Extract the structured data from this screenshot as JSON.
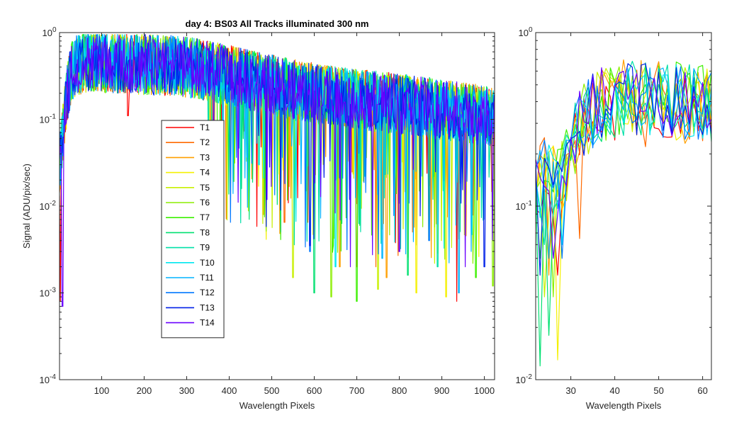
{
  "chart_data": [
    {
      "type": "line",
      "title": "day 4: BS03   All Tracks illuminated   300 nm",
      "xlabel": "Wavelength Pixels",
      "ylabel": "Signal (ADU/pix/sec)",
      "xlim": [
        1,
        1024
      ],
      "ylim": [
        0.0001,
        1
      ],
      "yscale": "log",
      "xticks": [
        100,
        200,
        300,
        400,
        500,
        600,
        700,
        800,
        900,
        1000
      ],
      "yticks": [
        {
          "value": 0.0001,
          "base": "10",
          "exp": "-4"
        },
        {
          "value": 0.001,
          "base": "10",
          "exp": "-3"
        },
        {
          "value": 0.01,
          "base": "10",
          "exp": "-2"
        },
        {
          "value": 0.1,
          "base": "10",
          "exp": "-1"
        },
        {
          "value": 1,
          "base": "10",
          "exp": "0"
        }
      ],
      "grid": false,
      "legend": "inside-center-left",
      "envelope": {
        "x": [
          1,
          10,
          20,
          30,
          40,
          60,
          100,
          150,
          200,
          250,
          300,
          350,
          400,
          450,
          500,
          550,
          600,
          650,
          700,
          750,
          800,
          850,
          900,
          950,
          1000,
          1024
        ],
        "y": [
          0.02,
          0.08,
          0.2,
          0.35,
          0.42,
          0.45,
          0.45,
          0.44,
          0.43,
          0.42,
          0.4,
          0.36,
          0.32,
          0.28,
          0.25,
          0.22,
          0.2,
          0.18,
          0.17,
          0.16,
          0.15,
          0.14,
          0.13,
          0.12,
          0.11,
          0.1
        ]
      },
      "series": [
        {
          "name": "T1",
          "color": "#ff0000",
          "dips": [
            [
              162,
              0.11
            ],
            [
              3,
              0.0008
            ],
            [
              935,
              0.0008
            ]
          ]
        },
        {
          "name": "T2",
          "color": "#ff6a00",
          "dips": [
            [
              530,
              0.0065
            ],
            [
              585,
              0.0065
            ],
            [
              700,
              0.002
            ],
            [
              745,
              0.002
            ],
            [
              913,
              0.0075
            ]
          ]
        },
        {
          "name": "T3",
          "color": "#ff9f00",
          "dips": [
            [
              480,
              0.008
            ],
            [
              660,
              0.002
            ],
            [
              770,
              0.0015
            ]
          ]
        },
        {
          "name": "T4",
          "color": "#f4f000",
          "dips": [
            [
              910,
              0.0009
            ],
            [
              840,
              0.001
            ]
          ]
        },
        {
          "name": "T5",
          "color": "#c8f000",
          "dips": [
            [
              550,
              0.0015
            ],
            [
              750,
              0.0011
            ]
          ]
        },
        {
          "name": "T6",
          "color": "#8cee00",
          "dips": [
            [
              640,
              0.0009
            ],
            [
              1020,
              0.0012
            ]
          ]
        },
        {
          "name": "T7",
          "color": "#3cf000",
          "dips": [
            [
              700,
              0.0008
            ],
            [
              980,
              0.0015
            ]
          ]
        },
        {
          "name": "T8",
          "color": "#00e070",
          "dips": [
            [
              820,
              0.0016
            ],
            [
              600,
              0.001
            ]
          ]
        },
        {
          "name": "T9",
          "color": "#00e0a8",
          "dips": [
            [
              360,
              0.06
            ],
            [
              890,
              0.002
            ]
          ]
        },
        {
          "name": "T10",
          "color": "#00e8f0",
          "dips": [
            [
              470,
              0.03
            ],
            [
              650,
              0.002
            ]
          ]
        },
        {
          "name": "T11",
          "color": "#00b4ff",
          "dips": [
            [
              760,
              0.0025
            ],
            [
              940,
              0.001
            ]
          ]
        },
        {
          "name": "T12",
          "color": "#0078ff",
          "dips": [
            [
              590,
              0.003
            ],
            [
              870,
              0.004
            ]
          ]
        },
        {
          "name": "T13",
          "color": "#0020e8",
          "dips": [
            [
              590,
              0.0035
            ],
            [
              1000,
              0.002
            ]
          ]
        },
        {
          "name": "T14",
          "color": "#6a00ff",
          "dips": [
            [
              8,
              0.0007
            ],
            [
              685,
              0.002
            ],
            [
              800,
              0.003
            ],
            [
              955,
              0.002
            ]
          ]
        }
      ]
    },
    {
      "type": "line",
      "title": "",
      "xlabel": "Wavelength Pixels",
      "ylabel": "",
      "xlim": [
        22,
        62
      ],
      "ylim": [
        0.01,
        1
      ],
      "yscale": "log",
      "xticks": [
        30,
        40,
        50,
        60
      ],
      "yticks": [
        {
          "value": 0.01,
          "base": "10",
          "exp": "-2"
        },
        {
          "value": 0.1,
          "base": "10",
          "exp": "-1"
        },
        {
          "value": 1,
          "base": "10",
          "exp": "0"
        }
      ],
      "grid": false,
      "envelope": {
        "x": [
          22,
          24,
          26,
          28,
          30,
          32,
          34,
          36,
          38,
          40,
          42,
          44,
          46,
          48,
          50,
          52,
          54,
          56,
          58,
          60,
          62
        ],
        "y": [
          0.12,
          0.16,
          0.14,
          0.15,
          0.2,
          0.28,
          0.33,
          0.37,
          0.39,
          0.41,
          0.42,
          0.42,
          0.42,
          0.42,
          0.41,
          0.41,
          0.41,
          0.4,
          0.4,
          0.39,
          0.39
        ]
      },
      "series": [
        {
          "name": "T1",
          "color": "#ff0000",
          "dips": [
            [
              27,
              0.04
            ],
            [
              40,
              0.24
            ]
          ]
        },
        {
          "name": "T2",
          "color": "#ff6a00",
          "dips": [
            [
              25,
              0.05
            ],
            [
              32,
              0.065
            ],
            [
              47,
              0.22
            ]
          ]
        },
        {
          "name": "T3",
          "color": "#ff9f00",
          "dips": [
            [
              25,
              0.04
            ],
            [
              56,
              0.23
            ]
          ]
        },
        {
          "name": "T4",
          "color": "#f4f000",
          "dips": [
            [
              27,
              0.013
            ],
            [
              54,
              0.24
            ]
          ]
        },
        {
          "name": "T5",
          "color": "#c8f000",
          "dips": [
            [
              24,
              0.03
            ]
          ]
        },
        {
          "name": "T6",
          "color": "#8cee00",
          "dips": [
            [
              26,
              0.03
            ],
            [
              58,
              0.26
            ]
          ]
        },
        {
          "name": "T7",
          "color": "#3cf000",
          "dips": [
            [
              23,
              0.05
            ]
          ]
        },
        {
          "name": "T8",
          "color": "#00e070",
          "dips": [
            [
              23,
              0.012
            ],
            [
              25,
              0.018
            ]
          ]
        },
        {
          "name": "T9",
          "color": "#00e0a8",
          "dips": [
            [
              24,
              0.06
            ]
          ]
        },
        {
          "name": "T10",
          "color": "#00e8f0",
          "dips": [
            [
              28,
              0.06
            ]
          ]
        },
        {
          "name": "T11",
          "color": "#00b4ff",
          "dips": [
            [
              25,
              0.05
            ]
          ]
        },
        {
          "name": "T12",
          "color": "#0078ff",
          "dips": [
            [
              28,
              0.05
            ]
          ]
        },
        {
          "name": "T13",
          "color": "#0020e8",
          "dips": [
            [
              23,
              0.04
            ]
          ]
        },
        {
          "name": "T14",
          "color": "#6a00ff",
          "dips": [
            [
              26,
              0.05
            ]
          ]
        }
      ]
    }
  ]
}
